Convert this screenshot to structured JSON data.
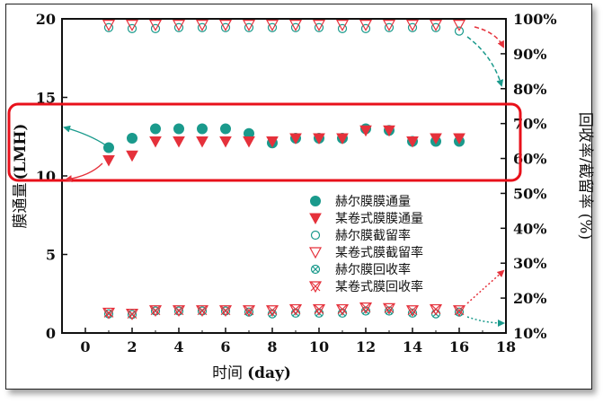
{
  "chart_data": {
    "type": "scatter",
    "xlabel_cn": "时间",
    "xlabel_unit": "(day)",
    "ylabel_left_cn": "膜通量",
    "ylabel_left_unit": "(LMH)",
    "ylabel_right_cn": "回收率/截留率",
    "ylabel_right_unit": "(%)",
    "xlim": [
      -1,
      18
    ],
    "ylim_left": [
      0,
      20
    ],
    "ylim_right": [
      10,
      100
    ],
    "x_ticks": [
      0,
      2,
      4,
      6,
      8,
      10,
      12,
      14,
      16,
      18
    ],
    "y_left_ticks": [
      0,
      5,
      10,
      15,
      20
    ],
    "y_right_ticks": [
      "10%",
      "20%",
      "30%",
      "40%",
      "50%",
      "60%",
      "70%",
      "80%",
      "90%",
      "100%"
    ],
    "colors": {
      "teal": "#1a9a8c",
      "red": "#e5313b"
    },
    "legend_position": "center-right",
    "series": [
      {
        "name": "赫尔膜膜通量",
        "axis": "left",
        "marker": "filled-circle",
        "color": "#1a9a8c",
        "x": [
          1,
          2,
          3,
          4,
          5,
          6,
          7,
          8,
          9,
          10,
          11,
          12,
          13,
          14,
          15,
          16
        ],
        "values": [
          11.8,
          12.4,
          13.0,
          13.0,
          13.0,
          13.0,
          12.7,
          12.1,
          12.4,
          12.4,
          12.4,
          13.0,
          12.9,
          12.2,
          12.2,
          12.2
        ]
      },
      {
        "name": "某卷式膜膜通量",
        "axis": "left",
        "marker": "filled-triangle-down",
        "color": "#e5313b",
        "x": [
          1,
          2,
          3,
          4,
          5,
          6,
          7,
          8,
          9,
          10,
          11,
          12,
          13,
          14,
          15,
          16
        ],
        "values": [
          11.0,
          11.3,
          12.2,
          12.2,
          12.2,
          12.2,
          12.2,
          12.2,
          12.4,
          12.4,
          12.4,
          12.9,
          12.9,
          12.2,
          12.4,
          12.4
        ]
      },
      {
        "name": "赫尔膜截留率",
        "axis": "right",
        "marker": "open-circle",
        "color": "#1a9a8c",
        "x": [
          1,
          2,
          3,
          4,
          5,
          6,
          7,
          8,
          9,
          10,
          11,
          12,
          13,
          14,
          15,
          16
        ],
        "values": [
          97.5,
          97.2,
          97.2,
          97.5,
          97.5,
          97.5,
          97.5,
          97.5,
          97.5,
          97.5,
          97.2,
          97.2,
          97.5,
          97.5,
          97.5,
          96.5
        ]
      },
      {
        "name": "某卷式膜截留率",
        "axis": "right",
        "marker": "open-triangle-down",
        "color": "#e5313b",
        "x": [
          1,
          2,
          3,
          4,
          5,
          6,
          7,
          8,
          9,
          10,
          11,
          12,
          13,
          14,
          15,
          16
        ],
        "values": [
          98.3,
          98.3,
          98.3,
          98.3,
          98.3,
          98.3,
          98.3,
          98.3,
          98.3,
          98.3,
          98.3,
          98.3,
          98.3,
          98.3,
          98.3,
          98.3
        ]
      },
      {
        "name": "赫尔膜回收率",
        "axis": "right",
        "marker": "circle-x",
        "color": "#1a9a8c",
        "x": [
          1,
          2,
          3,
          4,
          5,
          6,
          7,
          8,
          9,
          10,
          11,
          12,
          13,
          14,
          15,
          16
        ],
        "values": [
          15.5,
          15.3,
          16.3,
          16.3,
          16.3,
          16.3,
          16.0,
          15.5,
          15.7,
          15.7,
          15.7,
          16.3,
          16.3,
          15.7,
          15.5,
          16.0
        ]
      },
      {
        "name": "某卷式膜回收率",
        "axis": "right",
        "marker": "triangle-x",
        "color": "#e5313b",
        "x": [
          1,
          2,
          3,
          4,
          5,
          6,
          7,
          8,
          9,
          10,
          11,
          12,
          13,
          14,
          15,
          16
        ],
        "values": [
          15.8,
          15.5,
          16.5,
          16.5,
          16.5,
          16.5,
          16.5,
          16.5,
          16.8,
          16.8,
          16.8,
          17.3,
          17.1,
          16.5,
          16.8,
          16.5
        ]
      }
    ]
  }
}
